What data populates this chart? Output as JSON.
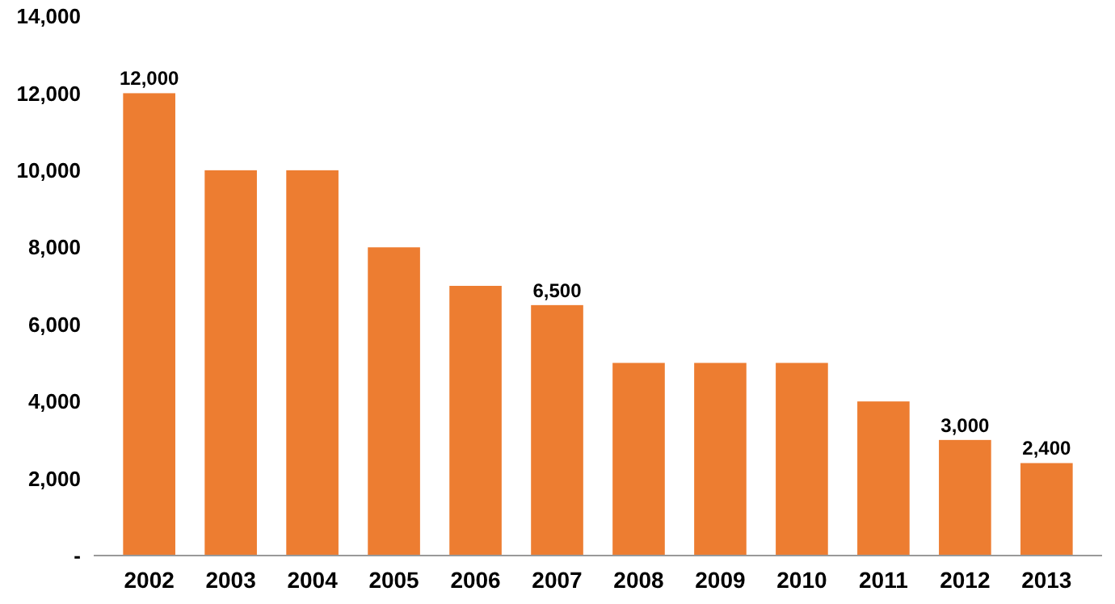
{
  "chart_data": {
    "type": "bar",
    "categories": [
      "2002",
      "2003",
      "2004",
      "2005",
      "2006",
      "2007",
      "2008",
      "2009",
      "2010",
      "2011",
      "2012",
      "2013"
    ],
    "values": [
      12000,
      10000,
      10000,
      8000,
      7000,
      6500,
      5000,
      5000,
      5000,
      4000,
      3000,
      2400
    ],
    "value_labels": [
      "12,000",
      null,
      null,
      null,
      null,
      "6,500",
      null,
      null,
      null,
      null,
      "3,000",
      "2,400"
    ],
    "color": "#ed7d31",
    "ylim": [
      0,
      14000
    ],
    "yticks": [
      {
        "value": 0,
        "label": "-"
      },
      {
        "value": 2000,
        "label": "2,000"
      },
      {
        "value": 4000,
        "label": "4,000"
      },
      {
        "value": 6000,
        "label": "6,000"
      },
      {
        "value": 8000,
        "label": "8,000"
      },
      {
        "value": 10000,
        "label": "10,000"
      },
      {
        "value": 12000,
        "label": "12,000"
      },
      {
        "value": 14000,
        "label": "14,000"
      }
    ],
    "grid": false
  }
}
